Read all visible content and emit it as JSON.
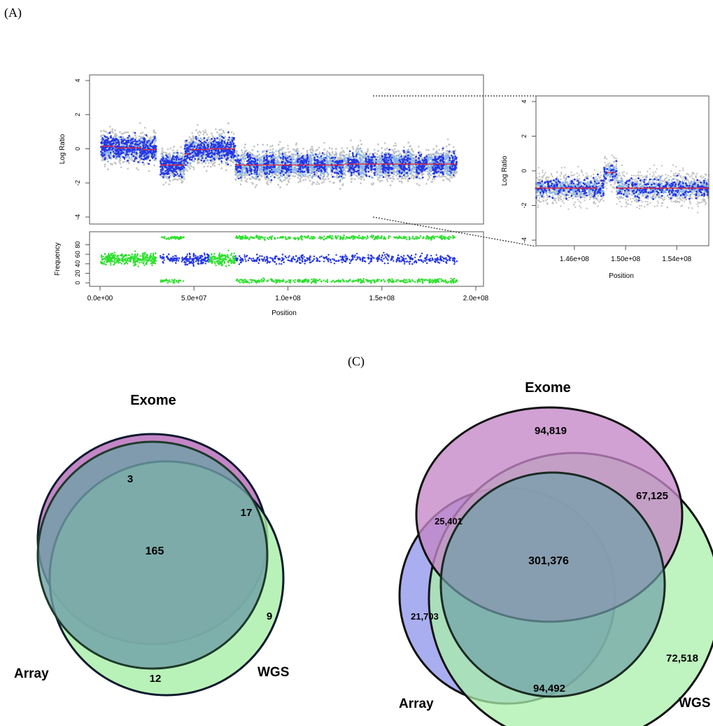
{
  "panel_labels": {
    "a": "(A)",
    "c": "(C)"
  },
  "chart_data": [
    {
      "type": "scatter",
      "name": "main-cn-plot",
      "ylabel": "Log Ratio",
      "xlabel": "Position",
      "xlim": [
        0,
        200000000
      ],
      "ylim": [
        -4,
        4
      ],
      "x_ticks": [
        0,
        50000000,
        100000000,
        150000000,
        200000000
      ],
      "x_tick_labels": [
        "0.0e+00",
        "5.0e+07",
        "1.0e+08",
        "1.5e+08",
        "2.0e+08"
      ],
      "y_ticks": [
        -4,
        -2,
        0,
        2,
        4
      ],
      "y_tick_labels": [
        "-4",
        "-2",
        "0",
        "2",
        "4"
      ],
      "segments": [
        {
          "x0": 500000,
          "x1": 8000000,
          "y": 0.15
        },
        {
          "x0": 8000000,
          "x1": 22000000,
          "y": 0.05
        },
        {
          "x0": 22000000,
          "x1": 30000000,
          "y": -0.05
        },
        {
          "x0": 32000000,
          "x1": 45000000,
          "y": -0.95
        },
        {
          "x0": 45000000,
          "x1": 48000000,
          "y": -0.3
        },
        {
          "x0": 48000000,
          "x1": 58000000,
          "y": -0.05
        },
        {
          "x0": 58000000,
          "x1": 72000000,
          "y": 0.0
        },
        {
          "x0": 72000000,
          "x1": 130000000,
          "y": -0.95
        },
        {
          "x0": 130000000,
          "x1": 190000000,
          "y": -0.9
        }
      ],
      "colors": {
        "grey": "#c4c4c4",
        "blue": "#2436e6",
        "light_blue": "#7fb2f0",
        "segment": "#e0283a"
      }
    },
    {
      "type": "scatter",
      "name": "frequency-plot",
      "ylabel": "Frequency",
      "xlabel": "",
      "ylim": [
        0,
        100
      ],
      "y_ticks": [
        0,
        20,
        40,
        60,
        80
      ],
      "y_tick_labels": [
        "0",
        "20",
        "40",
        "60",
        "80"
      ],
      "colors": {
        "blue": "#2436e6",
        "green": "#2ee02e"
      }
    },
    {
      "type": "scatter",
      "name": "zoom-cn-plot",
      "ylabel": "Log Ratio",
      "xlabel": "Position",
      "xlim": [
        143000000,
        156500000
      ],
      "ylim": [
        -4,
        4
      ],
      "x_ticks": [
        146000000,
        150000000,
        154000000
      ],
      "x_tick_labels": [
        "1.46e+08",
        "1.50e+08",
        "1.54e+08"
      ],
      "y_ticks": [
        -4,
        -2,
        0,
        2,
        4
      ],
      "y_tick_labels": [
        "-4",
        "-2",
        "0",
        "2",
        "4"
      ],
      "segments": [
        {
          "x0": 143000000,
          "x1": 147800000,
          "y": -1.0
        },
        {
          "x0": 148500000,
          "x1": 149200000,
          "y": -0.1
        },
        {
          "x0": 149300000,
          "x1": 156500000,
          "y": -1.0
        }
      ]
    }
  ],
  "venn_left": {
    "labels": {
      "exome": "Exome",
      "array": "Array",
      "wgs": "WGS"
    },
    "counts": {
      "exome_only": "3",
      "exome_wgs": "17",
      "all": "165",
      "wgs_only": "9",
      "array_wgs": "12"
    }
  },
  "venn_right": {
    "labels": {
      "exome": "Exome",
      "array": "Array",
      "wgs": "WGS"
    },
    "counts": {
      "exome_only": "94,819",
      "exome_array": "25,401",
      "exome_wgs": "67,125",
      "all": "301,376",
      "array_only": "21,703",
      "wgs_only": "72,518",
      "array_wgs": "94,492"
    }
  },
  "colors": {
    "exome": "#c486c6",
    "array": "#a9aef0",
    "wgs": "#a9efaa",
    "core": "#6f9fa8"
  }
}
